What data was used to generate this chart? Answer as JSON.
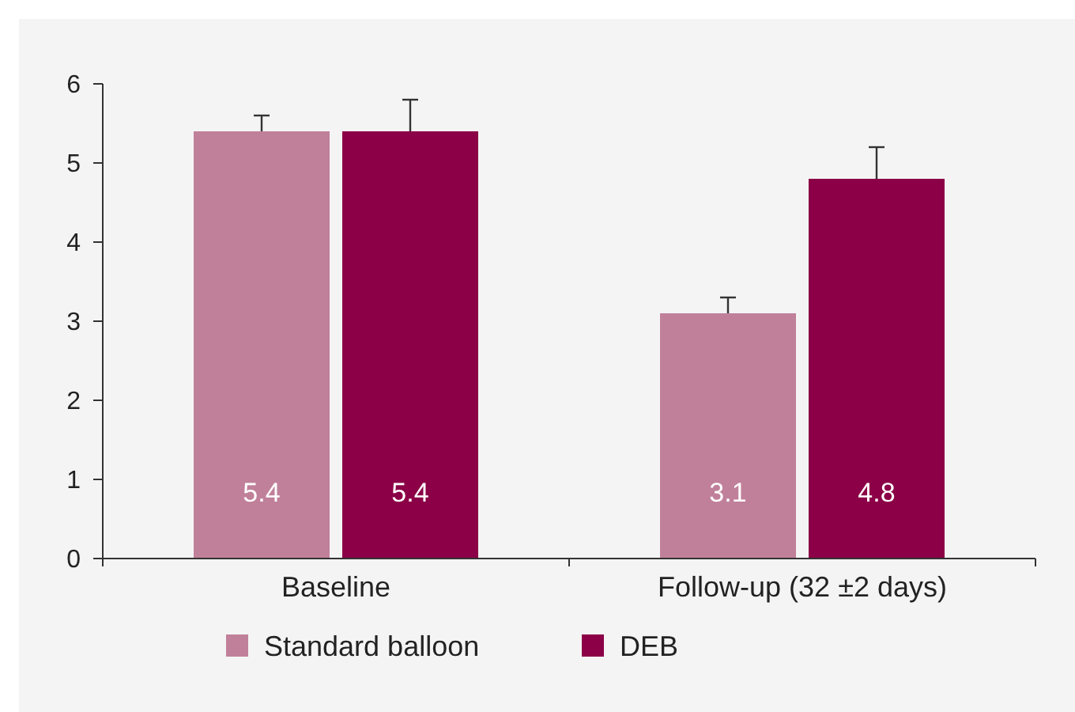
{
  "chart_data": {
    "type": "bar",
    "categories": [
      "Baseline",
      "Follow-up (32 ±2 days)"
    ],
    "series": [
      {
        "name": "Standard balloon",
        "color": "#c0809a",
        "values": [
          5.4,
          3.1
        ],
        "errors": [
          [
            5.4,
            5.6
          ],
          [
            3.1,
            3.3
          ]
        ]
      },
      {
        "name": "DEB",
        "color": "#8b0046",
        "values": [
          5.4,
          4.8
        ],
        "errors": [
          [
            5.4,
            5.8
          ],
          [
            4.8,
            5.2
          ]
        ]
      }
    ],
    "ylim": [
      0,
      6
    ],
    "yticks": [
      0,
      1,
      2,
      3,
      4,
      5,
      6
    ],
    "grid": false,
    "legend": "bottom",
    "data_labels": true
  }
}
